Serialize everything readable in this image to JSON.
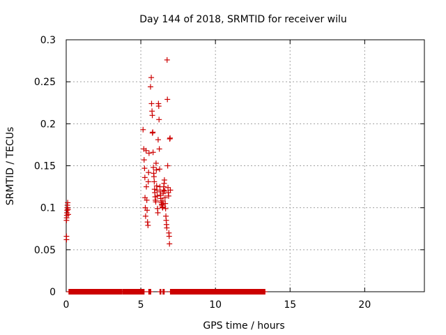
{
  "chart_data": {
    "type": "scatter",
    "title": "Day 144 of 2018, SRMTID for receiver wilu",
    "xlabel": "GPS time / hours",
    "ylabel": "SRMTID / TECUs",
    "xlim": [
      0,
      24
    ],
    "ylim": [
      0,
      0.3
    ],
    "xticks": [
      "0",
      "5",
      "10",
      "15",
      "20"
    ],
    "yticks": [
      "0",
      "0.05",
      "0.1",
      "0.15",
      "0.2",
      "0.25",
      "0.3"
    ],
    "grid": true,
    "marker": "+",
    "color": "#cc0000",
    "points": [
      [
        0.02,
        0.062
      ],
      [
        0.02,
        0.066
      ],
      [
        0.02,
        0.085
      ],
      [
        0.03,
        0.088
      ],
      [
        0.04,
        0.091
      ],
      [
        0.05,
        0.094
      ],
      [
        0.06,
        0.097
      ],
      [
        0.07,
        0.1
      ],
      [
        0.08,
        0.103
      ],
      [
        0.1,
        0.106
      ],
      [
        0.12,
        0.098
      ],
      [
        0.14,
        0.092
      ],
      [
        5.15,
        0.193
      ],
      [
        5.2,
        0.17
      ],
      [
        5.22,
        0.157
      ],
      [
        5.25,
        0.147
      ],
      [
        5.27,
        0.136
      ],
      [
        5.28,
        0.112
      ],
      [
        5.3,
        0.1
      ],
      [
        5.32,
        0.09
      ],
      [
        5.35,
        0.168
      ],
      [
        5.37,
        0.125
      ],
      [
        5.4,
        0.109
      ],
      [
        5.42,
        0.097
      ],
      [
        5.45,
        0.083
      ],
      [
        5.48,
        0.079
      ],
      [
        5.5,
        0.131
      ],
      [
        5.52,
        0.142
      ],
      [
        5.55,
        0.165
      ],
      [
        5.65,
        0.244
      ],
      [
        5.7,
        0.255
      ],
      [
        5.72,
        0.224
      ],
      [
        5.75,
        0.215
      ],
      [
        5.77,
        0.21
      ],
      [
        5.78,
        0.189
      ],
      [
        5.8,
        0.19
      ],
      [
        5.82,
        0.166
      ],
      [
        5.84,
        0.148
      ],
      [
        5.86,
        0.141
      ],
      [
        5.88,
        0.137
      ],
      [
        5.9,
        0.131
      ],
      [
        5.92,
        0.122
      ],
      [
        5.94,
        0.118
      ],
      [
        5.96,
        0.113
      ],
      [
        5.98,
        0.109
      ],
      [
        6.0,
        0.107
      ],
      [
        6.02,
        0.153
      ],
      [
        6.04,
        0.145
      ],
      [
        6.06,
        0.126
      ],
      [
        6.08,
        0.121
      ],
      [
        6.1,
        0.114
      ],
      [
        6.12,
        0.099
      ],
      [
        6.14,
        0.094
      ],
      [
        6.16,
        0.181
      ],
      [
        6.18,
        0.224
      ],
      [
        6.2,
        0.221
      ],
      [
        6.22,
        0.205
      ],
      [
        6.24,
        0.17
      ],
      [
        6.26,
        0.146
      ],
      [
        6.28,
        0.125
      ],
      [
        6.3,
        0.119
      ],
      [
        6.32,
        0.115
      ],
      [
        6.34,
        0.111
      ],
      [
        6.36,
        0.108
      ],
      [
        6.38,
        0.106
      ],
      [
        6.4,
        0.104
      ],
      [
        6.42,
        0.103
      ],
      [
        6.44,
        0.101
      ],
      [
        6.46,
        0.1
      ],
      [
        6.48,
        0.108
      ],
      [
        6.5,
        0.117
      ],
      [
        6.52,
        0.121
      ],
      [
        6.54,
        0.125
      ],
      [
        6.56,
        0.129
      ],
      [
        6.58,
        0.133
      ],
      [
        6.6,
        0.12
      ],
      [
        6.62,
        0.112
      ],
      [
        6.64,
        0.105
      ],
      [
        6.66,
        0.099
      ],
      [
        6.68,
        0.09
      ],
      [
        6.7,
        0.085
      ],
      [
        6.72,
        0.08
      ],
      [
        6.74,
        0.076
      ],
      [
        6.76,
        0.276
      ],
      [
        6.78,
        0.229
      ],
      [
        6.8,
        0.15
      ],
      [
        6.82,
        0.124
      ],
      [
        6.84,
        0.118
      ],
      [
        6.86,
        0.114
      ],
      [
        6.88,
        0.07
      ],
      [
        6.9,
        0.066
      ],
      [
        6.92,
        0.057
      ],
      [
        6.94,
        0.182
      ],
      [
        6.96,
        0.183
      ],
      [
        6.98,
        0.121
      ]
    ],
    "zero_segments": [
      [
        0.2,
        3.7
      ],
      [
        3.8,
        5.2
      ],
      [
        5.55,
        5.65
      ],
      [
        6.3,
        6.33
      ],
      [
        6.5,
        6.55
      ],
      [
        7.0,
        13.3
      ]
    ]
  }
}
